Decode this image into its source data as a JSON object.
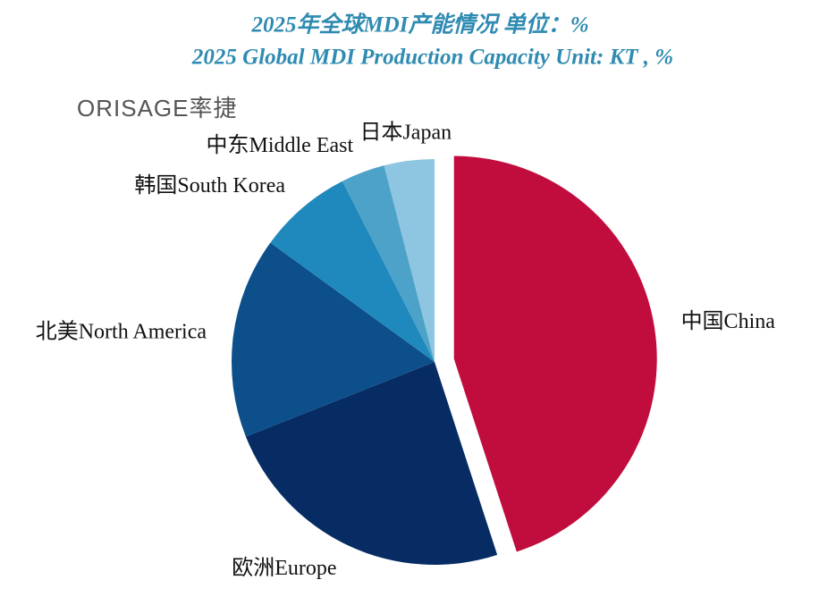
{
  "chart_data": {
    "type": "pie",
    "title": "2025年全球MDI产能情况  单位：%",
    "subtitle": "2025 Global MDI Production Capacity Unit: KT , %",
    "logo": "ORISAGE率捷",
    "categories": [
      "中国China",
      "欧洲Europe",
      "北美North America",
      "韩国South Korea",
      "中东Middle East",
      "日本Japan"
    ],
    "values": [
      45,
      24,
      16,
      7.5,
      3.5,
      4
    ],
    "colors": [
      "#c00d3e",
      "#062c63",
      "#0d4f8b",
      "#1f89bd",
      "#4da2c9",
      "#8ec5e0"
    ],
    "explode": [
      1,
      0,
      0,
      0,
      0,
      0
    ]
  }
}
